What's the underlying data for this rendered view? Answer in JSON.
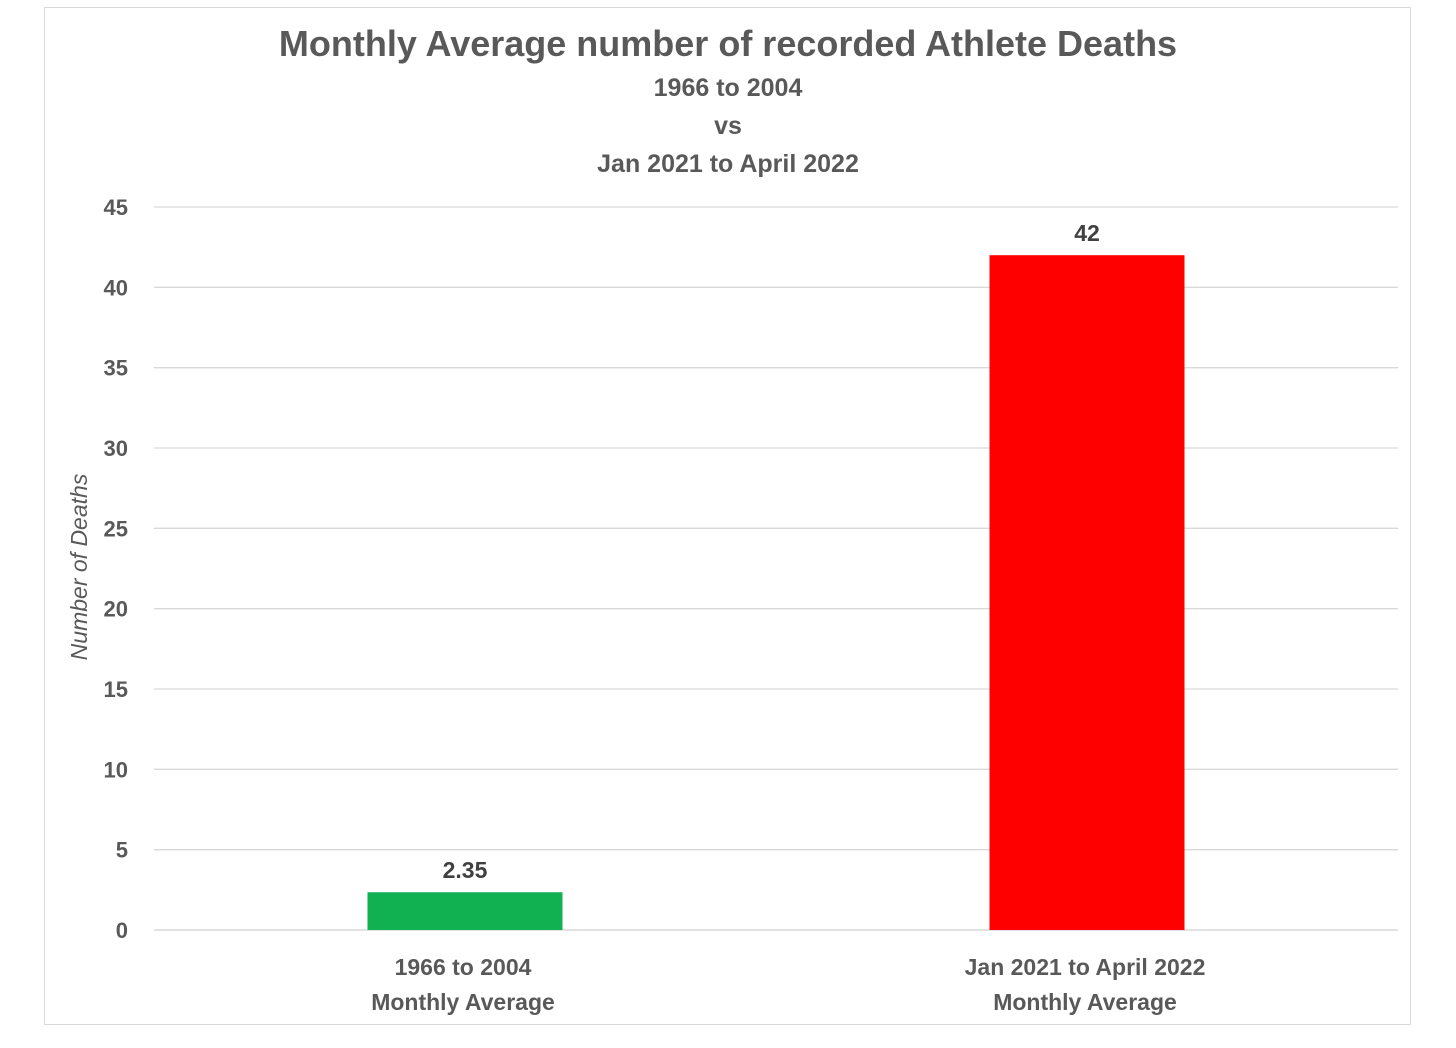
{
  "chart_data": {
    "type": "bar",
    "title": "Monthly Average number of recorded Athlete Deaths",
    "subtitle_lines": [
      "1966 to 2004",
      "vs",
      "Jan 2021 to April 2022"
    ],
    "ylabel": "Number of Deaths",
    "xlabel": "",
    "ylim": [
      0,
      45
    ],
    "yticks": [
      0,
      5,
      10,
      15,
      20,
      25,
      30,
      35,
      40,
      45
    ],
    "grid": true,
    "legend": "none",
    "categories": [
      [
        "1966 to 2004",
        "Monthly Average"
      ],
      [
        "Jan 2021 to April 2022",
        "Monthly Average"
      ]
    ],
    "values": [
      2.35,
      42
    ],
    "data_labels": [
      "2.35",
      "42"
    ],
    "colors": [
      "#11b050",
      "#ff0000"
    ]
  }
}
